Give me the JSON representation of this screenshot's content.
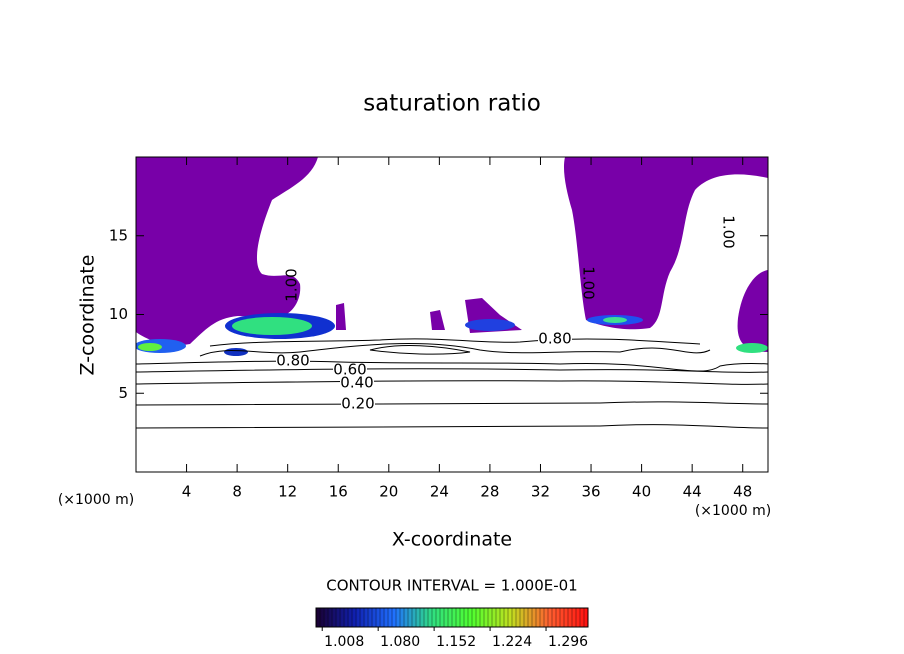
{
  "chart_data": {
    "type": "contour",
    "title": "saturation ratio",
    "x_label": "X-coordinate",
    "y_label": "Z-coordinate",
    "x_unit_label": "(×1000 m)",
    "y_unit_label": "(×1000 m)",
    "xlim": [
      0,
      50
    ],
    "ylim": [
      0,
      20
    ],
    "xticks": [
      4,
      8,
      12,
      16,
      20,
      24,
      28,
      32,
      36,
      40,
      44,
      48
    ],
    "yticks": [
      5,
      10,
      15
    ],
    "region_color": "#7800a8",
    "contour_labels": [
      {
        "value": 1,
        "label": "1.00"
      },
      {
        "value": 1,
        "label": "1.00"
      },
      {
        "value": 1,
        "label": "1.00"
      },
      {
        "value": 0.8,
        "label": "0.80"
      },
      {
        "value": 0.6,
        "label": "0.60"
      },
      {
        "value": 0.4,
        "label": "0.40"
      },
      {
        "value": 0.2,
        "label": "0.20"
      },
      {
        "value": 0.8,
        "label": "0.80"
      }
    ],
    "contour_interval_label": "CONTOUR INTERVAL = 1.000E-01",
    "colorbar_lim": [
      1.0,
      1.35
    ],
    "colorbar_ticks": [
      1.008,
      {
        "value": 1.08,
        "label": "1.080"
      },
      1.152,
      1.224,
      1.296
    ],
    "colormap": [
      "#1a0030",
      "#1020b0",
      "#2070ff",
      "#30e080",
      "#50ff30",
      "#c0e020",
      "#ff6030",
      "#ff1010"
    ]
  }
}
